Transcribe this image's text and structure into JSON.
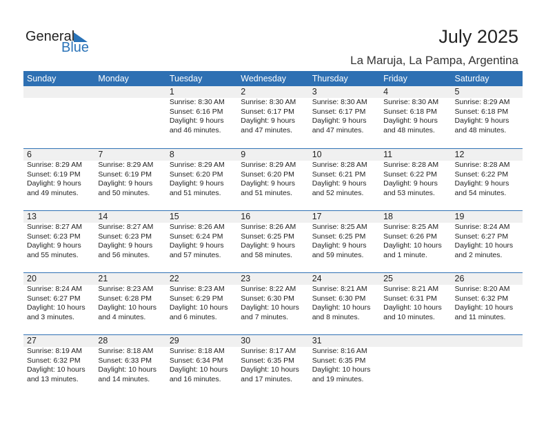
{
  "logo": {
    "line1": "General",
    "line2": "Blue"
  },
  "title": "July 2025",
  "location": "La Maruja, La Pampa, Argentina",
  "colors": {
    "header": "#2e70b3",
    "band": "#f0f0f0",
    "logo_blue": "#2a73b8"
  },
  "weekdays": [
    "Sunday",
    "Monday",
    "Tuesday",
    "Wednesday",
    "Thursday",
    "Friday",
    "Saturday"
  ],
  "weeks": [
    [
      null,
      null,
      {
        "day": "1",
        "sunrise": "Sunrise: 8:30 AM",
        "sunset": "Sunset: 6:16 PM",
        "daylight": "Daylight: 9 hours",
        "minutes": "and 46 minutes."
      },
      {
        "day": "2",
        "sunrise": "Sunrise: 8:30 AM",
        "sunset": "Sunset: 6:17 PM",
        "daylight": "Daylight: 9 hours",
        "minutes": "and 47 minutes."
      },
      {
        "day": "3",
        "sunrise": "Sunrise: 8:30 AM",
        "sunset": "Sunset: 6:17 PM",
        "daylight": "Daylight: 9 hours",
        "minutes": "and 47 minutes."
      },
      {
        "day": "4",
        "sunrise": "Sunrise: 8:30 AM",
        "sunset": "Sunset: 6:18 PM",
        "daylight": "Daylight: 9 hours",
        "minutes": "and 48 minutes."
      },
      {
        "day": "5",
        "sunrise": "Sunrise: 8:29 AM",
        "sunset": "Sunset: 6:18 PM",
        "daylight": "Daylight: 9 hours",
        "minutes": "and 48 minutes."
      }
    ],
    [
      {
        "day": "6",
        "sunrise": "Sunrise: 8:29 AM",
        "sunset": "Sunset: 6:19 PM",
        "daylight": "Daylight: 9 hours",
        "minutes": "and 49 minutes."
      },
      {
        "day": "7",
        "sunrise": "Sunrise: 8:29 AM",
        "sunset": "Sunset: 6:19 PM",
        "daylight": "Daylight: 9 hours",
        "minutes": "and 50 minutes."
      },
      {
        "day": "8",
        "sunrise": "Sunrise: 8:29 AM",
        "sunset": "Sunset: 6:20 PM",
        "daylight": "Daylight: 9 hours",
        "minutes": "and 51 minutes."
      },
      {
        "day": "9",
        "sunrise": "Sunrise: 8:29 AM",
        "sunset": "Sunset: 6:20 PM",
        "daylight": "Daylight: 9 hours",
        "minutes": "and 51 minutes."
      },
      {
        "day": "10",
        "sunrise": "Sunrise: 8:28 AM",
        "sunset": "Sunset: 6:21 PM",
        "daylight": "Daylight: 9 hours",
        "minutes": "and 52 minutes."
      },
      {
        "day": "11",
        "sunrise": "Sunrise: 8:28 AM",
        "sunset": "Sunset: 6:22 PM",
        "daylight": "Daylight: 9 hours",
        "minutes": "and 53 minutes."
      },
      {
        "day": "12",
        "sunrise": "Sunrise: 8:28 AM",
        "sunset": "Sunset: 6:22 PM",
        "daylight": "Daylight: 9 hours",
        "minutes": "and 54 minutes."
      }
    ],
    [
      {
        "day": "13",
        "sunrise": "Sunrise: 8:27 AM",
        "sunset": "Sunset: 6:23 PM",
        "daylight": "Daylight: 9 hours",
        "minutes": "and 55 minutes."
      },
      {
        "day": "14",
        "sunrise": "Sunrise: 8:27 AM",
        "sunset": "Sunset: 6:23 PM",
        "daylight": "Daylight: 9 hours",
        "minutes": "and 56 minutes."
      },
      {
        "day": "15",
        "sunrise": "Sunrise: 8:26 AM",
        "sunset": "Sunset: 6:24 PM",
        "daylight": "Daylight: 9 hours",
        "minutes": "and 57 minutes."
      },
      {
        "day": "16",
        "sunrise": "Sunrise: 8:26 AM",
        "sunset": "Sunset: 6:25 PM",
        "daylight": "Daylight: 9 hours",
        "minutes": "and 58 minutes."
      },
      {
        "day": "17",
        "sunrise": "Sunrise: 8:25 AM",
        "sunset": "Sunset: 6:25 PM",
        "daylight": "Daylight: 9 hours",
        "minutes": "and 59 minutes."
      },
      {
        "day": "18",
        "sunrise": "Sunrise: 8:25 AM",
        "sunset": "Sunset: 6:26 PM",
        "daylight": "Daylight: 10 hours",
        "minutes": "and 1 minute."
      },
      {
        "day": "19",
        "sunrise": "Sunrise: 8:24 AM",
        "sunset": "Sunset: 6:27 PM",
        "daylight": "Daylight: 10 hours",
        "minutes": "and 2 minutes."
      }
    ],
    [
      {
        "day": "20",
        "sunrise": "Sunrise: 8:24 AM",
        "sunset": "Sunset: 6:27 PM",
        "daylight": "Daylight: 10 hours",
        "minutes": "and 3 minutes."
      },
      {
        "day": "21",
        "sunrise": "Sunrise: 8:23 AM",
        "sunset": "Sunset: 6:28 PM",
        "daylight": "Daylight: 10 hours",
        "minutes": "and 4 minutes."
      },
      {
        "day": "22",
        "sunrise": "Sunrise: 8:23 AM",
        "sunset": "Sunset: 6:29 PM",
        "daylight": "Daylight: 10 hours",
        "minutes": "and 6 minutes."
      },
      {
        "day": "23",
        "sunrise": "Sunrise: 8:22 AM",
        "sunset": "Sunset: 6:30 PM",
        "daylight": "Daylight: 10 hours",
        "minutes": "and 7 minutes."
      },
      {
        "day": "24",
        "sunrise": "Sunrise: 8:21 AM",
        "sunset": "Sunset: 6:30 PM",
        "daylight": "Daylight: 10 hours",
        "minutes": "and 8 minutes."
      },
      {
        "day": "25",
        "sunrise": "Sunrise: 8:21 AM",
        "sunset": "Sunset: 6:31 PM",
        "daylight": "Daylight: 10 hours",
        "minutes": "and 10 minutes."
      },
      {
        "day": "26",
        "sunrise": "Sunrise: 8:20 AM",
        "sunset": "Sunset: 6:32 PM",
        "daylight": "Daylight: 10 hours",
        "minutes": "and 11 minutes."
      }
    ],
    [
      {
        "day": "27",
        "sunrise": "Sunrise: 8:19 AM",
        "sunset": "Sunset: 6:32 PM",
        "daylight": "Daylight: 10 hours",
        "minutes": "and 13 minutes."
      },
      {
        "day": "28",
        "sunrise": "Sunrise: 8:18 AM",
        "sunset": "Sunset: 6:33 PM",
        "daylight": "Daylight: 10 hours",
        "minutes": "and 14 minutes."
      },
      {
        "day": "29",
        "sunrise": "Sunrise: 8:18 AM",
        "sunset": "Sunset: 6:34 PM",
        "daylight": "Daylight: 10 hours",
        "minutes": "and 16 minutes."
      },
      {
        "day": "30",
        "sunrise": "Sunrise: 8:17 AM",
        "sunset": "Sunset: 6:35 PM",
        "daylight": "Daylight: 10 hours",
        "minutes": "and 17 minutes."
      },
      {
        "day": "31",
        "sunrise": "Sunrise: 8:16 AM",
        "sunset": "Sunset: 6:35 PM",
        "daylight": "Daylight: 10 hours",
        "minutes": "and 19 minutes."
      },
      null,
      null
    ]
  ]
}
